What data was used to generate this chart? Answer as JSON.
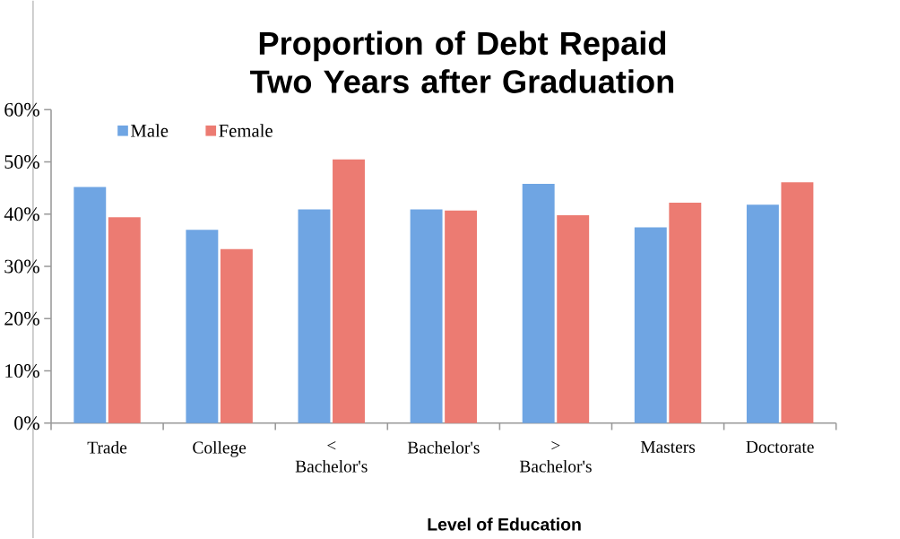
{
  "chart_data": {
    "type": "bar",
    "title": "Proportion of Debt Repaid Two Years after Graduation",
    "xlabel": "Level of Education",
    "categories": [
      "Trade",
      "College",
      "< Bachelor's",
      "Bachelor's",
      "> Bachelor's",
      "Masters",
      "Doctorate"
    ],
    "series": [
      {
        "name": "Male",
        "color": "#6fa5e3",
        "values": [
          45.2,
          37.0,
          40.9,
          40.9,
          45.8,
          37.5,
          41.8
        ]
      },
      {
        "name": "Female",
        "color": "#ec7b72",
        "values": [
          39.4,
          33.3,
          50.5,
          40.7,
          39.8,
          42.2,
          46.1
        ]
      }
    ],
    "ylim": [
      0,
      60
    ],
    "yticks": [
      {
        "value": 0,
        "label": "0%"
      },
      {
        "value": 10,
        "label": "10%"
      },
      {
        "value": 20,
        "label": "20%"
      },
      {
        "value": 30,
        "label": "30%"
      },
      {
        "value": 40,
        "label": "40%"
      },
      {
        "value": 50,
        "label": "50%"
      },
      {
        "value": 60,
        "label": "60%"
      }
    ],
    "grid": false,
    "legend": "top left"
  }
}
